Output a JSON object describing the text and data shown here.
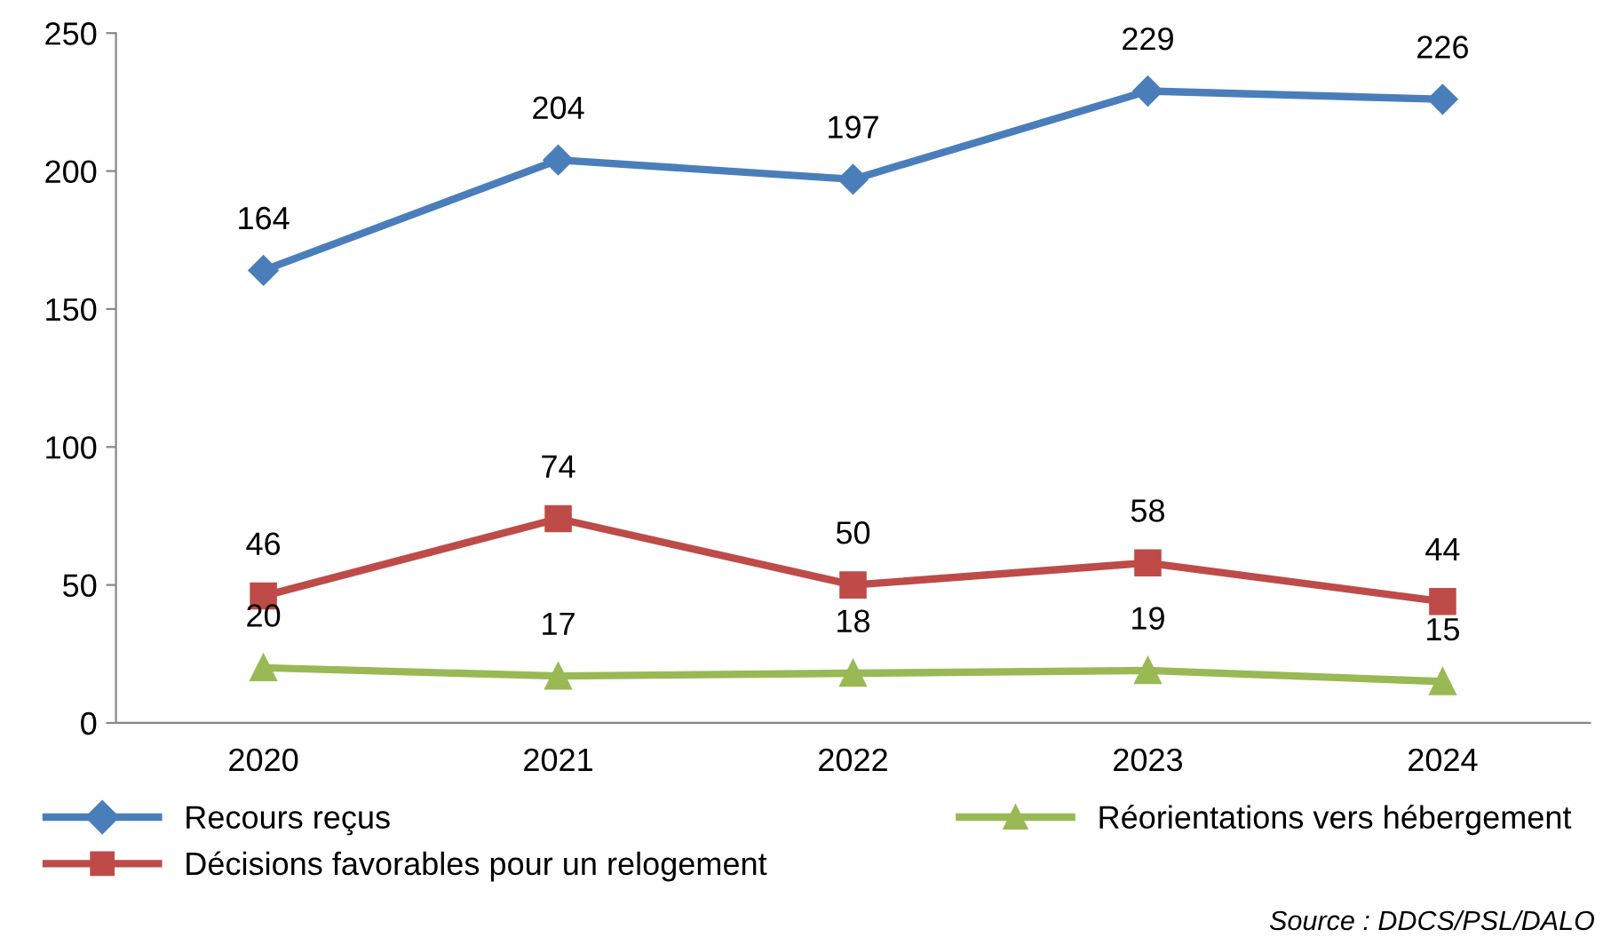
{
  "chart_data": {
    "type": "line",
    "categories": [
      "2020",
      "2021",
      "2022",
      "2023",
      "2024"
    ],
    "series": [
      {
        "name": "Recours reçus",
        "color": "#4a7ebb",
        "marker": "diamond",
        "values": [
          164,
          204,
          197,
          229,
          226
        ]
      },
      {
        "name": "Décisions favorables pour un relogement",
        "color": "#be4b48",
        "marker": "square",
        "values": [
          46,
          74,
          50,
          58,
          44
        ]
      },
      {
        "name": "Réorientations vers hébergement",
        "color": "#98b954",
        "marker": "triangle",
        "values": [
          20,
          17,
          18,
          19,
          15
        ]
      }
    ],
    "ylim": [
      0,
      250
    ],
    "yticks": [
      0,
      50,
      100,
      150,
      200,
      250
    ],
    "data_labels": true,
    "grid": false,
    "legend": "bottom",
    "line_style": "solid",
    "annotations": [
      "Source : DDCS/PSL/DALO"
    ]
  }
}
